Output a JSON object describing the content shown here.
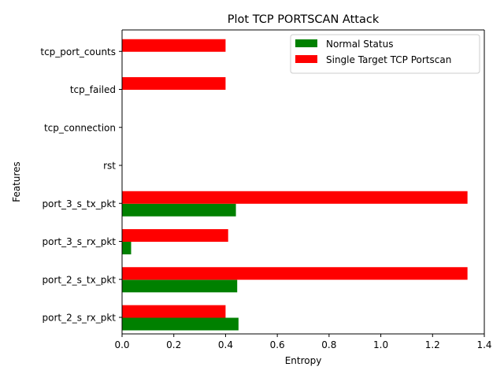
{
  "chart_data": {
    "type": "bar",
    "orientation": "horizontal",
    "title": "Plot TCP PORTSCAN Attack",
    "xlabel": "Entropy",
    "ylabel": "Features",
    "xlim": [
      0,
      1.4
    ],
    "x_ticks": [
      "0.0",
      "0.2",
      "0.4",
      "0.6",
      "0.8",
      "1.0",
      "1.2",
      "1.4"
    ],
    "categories": [
      "port_2_s_rx_pkt",
      "port_2_s_tx_pkt",
      "port_3_s_rx_pkt",
      "port_3_s_tx_pkt",
      "rst",
      "tcp_connection",
      "tcp_failed",
      "tcp_port_counts"
    ],
    "series": [
      {
        "name": "Normal Status",
        "color": "#008000",
        "values": [
          0.45,
          0.445,
          0.035,
          0.44,
          0,
          0,
          0,
          0
        ]
      },
      {
        "name": "Single Target TCP Portscan",
        "color": "#ff0000",
        "values": [
          0.4,
          1.335,
          0.41,
          1.335,
          0,
          0,
          0.4,
          0.4
        ]
      }
    ],
    "legend_position": "top-right",
    "grid": false
  }
}
